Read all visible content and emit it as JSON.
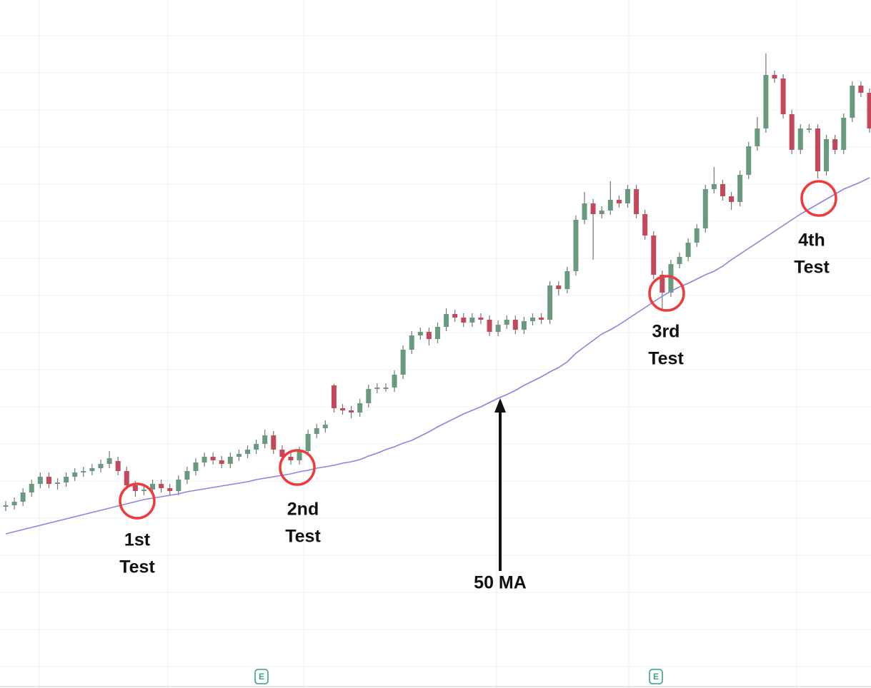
{
  "chart_data": {
    "type": "candlestick",
    "ylim": [
      0,
      964
    ],
    "up_color": "#6a9a7e",
    "down_color": "#c4485a",
    "open": [
      254,
      256,
      261,
      274,
      286,
      296,
      286,
      288,
      296,
      302,
      304,
      308,
      314,
      318,
      304,
      284,
      276,
      278,
      286,
      280,
      276,
      292,
      304,
      316,
      324,
      319,
      314,
      324,
      328,
      334,
      342,
      354,
      334,
      324,
      319,
      332,
      356,
      364,
      424,
      392,
      389,
      386,
      399,
      419,
      421,
      421,
      439,
      474,
      494,
      499,
      489,
      506,
      524,
      519,
      512,
      519,
      516,
      499,
      509,
      516,
      502,
      514,
      519,
      516,
      564,
      559,
      584,
      656,
      679,
      664,
      669,
      684,
      679,
      699,
      664,
      634,
      579,
      554,
      594,
      604,
      624,
      644,
      699,
      706,
      689,
      681,
      719,
      759,
      784,
      859,
      854,
      804,
      754,
      784,
      784,
      724,
      769,
      754,
      799,
      844,
      834
    ],
    "high": [
      262,
      267,
      280,
      292,
      302,
      302,
      294,
      302,
      308,
      310,
      314,
      320,
      332,
      324,
      310,
      290,
      284,
      292,
      292,
      286,
      298,
      310,
      322,
      330,
      330,
      325,
      330,
      334,
      340,
      348,
      362,
      360,
      340,
      330,
      338,
      362,
      370,
      375,
      426,
      398,
      395,
      405,
      425,
      427,
      427,
      445,
      480,
      500,
      505,
      505,
      512,
      532,
      530,
      525,
      525,
      525,
      522,
      515,
      522,
      522,
      520,
      525,
      525,
      570,
      570,
      590,
      662,
      695,
      685,
      675,
      710,
      690,
      705,
      705,
      670,
      640,
      585,
      600,
      610,
      630,
      650,
      705,
      730,
      712,
      695,
      725,
      765,
      800,
      889,
      865,
      860,
      810,
      790,
      790,
      790,
      775,
      775,
      805,
      850,
      850,
      840
    ],
    "low": [
      248,
      250,
      255,
      268,
      280,
      280,
      278,
      282,
      290,
      296,
      298,
      302,
      308,
      298,
      278,
      268,
      270,
      272,
      274,
      270,
      270,
      286,
      298,
      310,
      313,
      308,
      308,
      318,
      322,
      328,
      336,
      328,
      318,
      313,
      313,
      326,
      350,
      358,
      386,
      383,
      378,
      380,
      393,
      413,
      415,
      415,
      433,
      468,
      488,
      480,
      483,
      500,
      513,
      506,
      506,
      510,
      493,
      493,
      503,
      496,
      496,
      508,
      510,
      510,
      550,
      553,
      578,
      650,
      600,
      658,
      663,
      673,
      673,
      658,
      628,
      573,
      530,
      548,
      588,
      598,
      618,
      638,
      693,
      683,
      670,
      675,
      713,
      753,
      778,
      848,
      798,
      748,
      748,
      778,
      714,
      718,
      748,
      748,
      793,
      828,
      778
    ],
    "close": [
      256,
      261,
      274,
      286,
      296,
      286,
      288,
      296,
      302,
      304,
      308,
      314,
      322,
      304,
      284,
      276,
      278,
      286,
      280,
      276,
      292,
      304,
      316,
      324,
      319,
      314,
      324,
      328,
      334,
      342,
      354,
      334,
      324,
      319,
      332,
      356,
      364,
      369,
      392,
      389,
      386,
      399,
      419,
      421,
      421,
      439,
      474,
      494,
      499,
      489,
      506,
      524,
      519,
      512,
      519,
      516,
      499,
      509,
      516,
      502,
      514,
      519,
      516,
      564,
      559,
      584,
      656,
      679,
      664,
      669,
      684,
      679,
      699,
      664,
      634,
      579,
      554,
      594,
      604,
      624,
      644,
      699,
      706,
      689,
      681,
      719,
      759,
      784,
      859,
      854,
      804,
      754,
      784,
      784,
      724,
      769,
      754,
      799,
      844,
      834,
      784
    ],
    "series": [
      {
        "name": "50 MA",
        "color": "#8b84e0",
        "values": [
          216,
          219,
          222,
          225,
          228,
          231,
          234,
          237,
          240,
          243,
          246,
          249,
          252,
          255,
          258,
          261,
          264,
          266,
          268,
          270,
          272,
          275,
          277,
          279,
          281,
          283,
          285,
          287,
          289,
          292,
          294,
          296,
          298,
          300,
          303,
          305,
          308,
          310,
          312,
          315,
          317,
          320,
          325,
          329,
          334,
          338,
          343,
          347,
          353,
          359,
          366,
          372,
          378,
          384,
          389,
          394,
          400,
          406,
          411,
          417,
          424,
          430,
          436,
          443,
          449,
          457,
          469,
          478,
          487,
          496,
          502,
          509,
          517,
          525,
          533,
          541,
          549,
          556,
          562,
          567,
          573,
          579,
          584,
          591,
          600,
          608,
          616,
          624,
          632,
          640,
          648,
          656,
          664,
          671,
          678,
          685,
          692,
          699,
          704,
          709,
          715
        ]
      }
    ],
    "annotations": [
      [
        "1st",
        "Test"
      ],
      [
        "2nd",
        "Test"
      ],
      [
        "3rd",
        "Test"
      ],
      [
        "4th",
        "Test"
      ]
    ],
    "ma_label": "50 MA",
    "events": [
      "E",
      "E"
    ]
  }
}
